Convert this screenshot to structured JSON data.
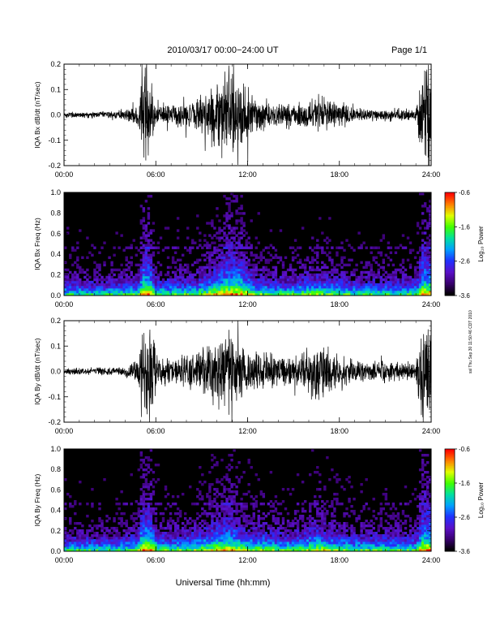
{
  "header": {
    "title": "2010/03/17  00:00−24:00 UT",
    "page_label": "Page 1/1"
  },
  "footer": {
    "xlabel": "Universal Time (hh:mm)"
  },
  "side_note": "ssl Thu Sep 30 11:50:46 CDT 2010",
  "colorbar": {
    "label": "Log₁₀ Power",
    "ticks": [
      "-0.6",
      "-1.6",
      "-2.6",
      "-3.6"
    ]
  },
  "time_ticks": [
    "00:00",
    "06:00",
    "12:00",
    "18:00",
    "24:00"
  ],
  "chart_data": [
    {
      "type": "line",
      "ylabel": "IQA Bx dB/dt (nT/sec)",
      "ylim": [
        -0.2,
        0.2
      ],
      "yticks": [
        "0.2",
        "0.1",
        "0.0",
        "-0.1",
        "-0.2"
      ],
      "xlim": [
        "00:00",
        "24:00"
      ],
      "color": "#000000",
      "activity": [
        {
          "t": 0,
          "amp": 0.015
        },
        {
          "t": 2,
          "amp": 0.015
        },
        {
          "t": 3.5,
          "amp": 0.018
        },
        {
          "t": 4.9,
          "amp": 0.05
        },
        {
          "t": 5.1,
          "amp": 0.22
        },
        {
          "t": 5.6,
          "amp": 0.22
        },
        {
          "t": 6.0,
          "amp": 0.05
        },
        {
          "t": 7.0,
          "amp": 0.05
        },
        {
          "t": 8.5,
          "amp": 0.06
        },
        {
          "t": 9.5,
          "amp": 0.12
        },
        {
          "t": 10.4,
          "amp": 0.2
        },
        {
          "t": 11.0,
          "amp": 0.22
        },
        {
          "t": 11.6,
          "amp": 0.2
        },
        {
          "t": 12.5,
          "amp": 0.08
        },
        {
          "t": 13.5,
          "amp": 0.05
        },
        {
          "t": 15.0,
          "amp": 0.05
        },
        {
          "t": 16.5,
          "amp": 0.09
        },
        {
          "t": 17.5,
          "amp": 0.07
        },
        {
          "t": 19.0,
          "amp": 0.03
        },
        {
          "t": 21.0,
          "amp": 0.03
        },
        {
          "t": 23.0,
          "amp": 0.03
        },
        {
          "t": 23.4,
          "amp": 0.22
        },
        {
          "t": 24.0,
          "amp": 0.22
        }
      ]
    },
    {
      "type": "heatmap",
      "ylabel": "IQA Bx Freq (Hz)",
      "ylim": [
        0.0,
        1.0
      ],
      "yticks": [
        "1.0",
        "0.8",
        "0.6",
        "0.4",
        "0.2",
        "0.0"
      ],
      "xlim": [
        "00:00",
        "24:00"
      ],
      "clim": [
        -3.6,
        -0.6
      ],
      "colormap": [
        "#000000",
        "#3a0070",
        "#5a10c8",
        "#2030ff",
        "#00a0ff",
        "#00e0a0",
        "#40ff00",
        "#e0ff00",
        "#ff8000",
        "#ff0000"
      ]
    },
    {
      "type": "line",
      "ylabel": "IQA By dB/dt (nT/sec)",
      "ylim": [
        -0.2,
        0.2
      ],
      "yticks": [
        "0.2",
        "0.1",
        "0.0",
        "-0.1",
        "-0.2"
      ],
      "xlim": [
        "00:00",
        "24:00"
      ],
      "color": "#000000",
      "activity": [
        {
          "t": 0,
          "amp": 0.015
        },
        {
          "t": 2,
          "amp": 0.018
        },
        {
          "t": 3.8,
          "amp": 0.02
        },
        {
          "t": 4.8,
          "amp": 0.06
        },
        {
          "t": 5.1,
          "amp": 0.22
        },
        {
          "t": 5.7,
          "amp": 0.22
        },
        {
          "t": 6.1,
          "amp": 0.07
        },
        {
          "t": 7.5,
          "amp": 0.06
        },
        {
          "t": 9.0,
          "amp": 0.1
        },
        {
          "t": 10.0,
          "amp": 0.16
        },
        {
          "t": 11.0,
          "amp": 0.18
        },
        {
          "t": 12.0,
          "amp": 0.1
        },
        {
          "t": 13.0,
          "amp": 0.1
        },
        {
          "t": 14.0,
          "amp": 0.07
        },
        {
          "t": 15.5,
          "amp": 0.08
        },
        {
          "t": 16.5,
          "amp": 0.13
        },
        {
          "t": 17.5,
          "amp": 0.1
        },
        {
          "t": 19.0,
          "amp": 0.05
        },
        {
          "t": 21.0,
          "amp": 0.05
        },
        {
          "t": 23.0,
          "amp": 0.04
        },
        {
          "t": 23.4,
          "amp": 0.22
        },
        {
          "t": 24.0,
          "amp": 0.22
        }
      ]
    },
    {
      "type": "heatmap",
      "ylabel": "IQA By Freq (Hz)",
      "ylim": [
        0.0,
        1.0
      ],
      "yticks": [
        "1.0",
        "0.8",
        "0.6",
        "0.4",
        "0.2",
        "0.0"
      ],
      "xlim": [
        "00:00",
        "24:00"
      ],
      "clim": [
        -3.6,
        -0.6
      ],
      "colormap": [
        "#000000",
        "#3a0070",
        "#5a10c8",
        "#2030ff",
        "#00a0ff",
        "#00e0a0",
        "#40ff00",
        "#e0ff00",
        "#ff8000",
        "#ff0000"
      ]
    }
  ]
}
